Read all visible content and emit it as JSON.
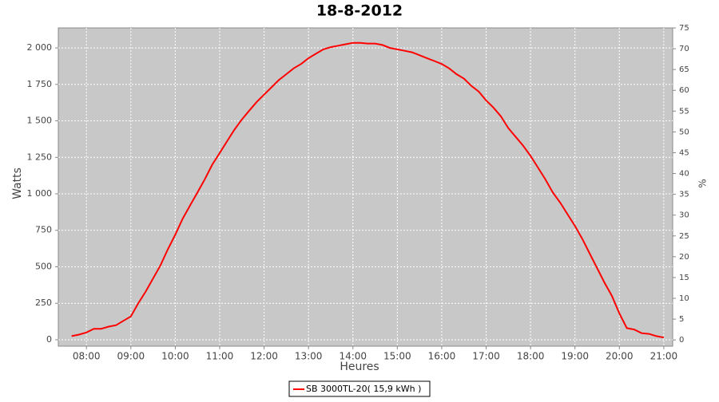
{
  "chart_data": {
    "type": "line",
    "title": "18-8-2012",
    "xlabel": "Heures",
    "ylabel": "Watts",
    "y2label": "%",
    "x": [
      "07:40",
      "07:50",
      "08:00",
      "08:10",
      "08:20",
      "08:30",
      "08:40",
      "08:50",
      "09:00",
      "09:10",
      "09:20",
      "09:30",
      "09:40",
      "09:50",
      "10:00",
      "10:10",
      "10:20",
      "10:30",
      "10:40",
      "10:50",
      "11:00",
      "11:10",
      "11:20",
      "11:30",
      "11:40",
      "11:50",
      "12:00",
      "12:10",
      "12:20",
      "12:30",
      "12:40",
      "12:50",
      "13:00",
      "13:10",
      "13:20",
      "13:30",
      "13:40",
      "13:50",
      "14:00",
      "14:10",
      "14:20",
      "14:30",
      "14:40",
      "14:50",
      "15:00",
      "15:10",
      "15:20",
      "15:30",
      "15:40",
      "15:50",
      "16:00",
      "16:10",
      "16:20",
      "16:30",
      "16:40",
      "16:50",
      "17:00",
      "17:10",
      "17:20",
      "17:30",
      "17:40",
      "17:50",
      "18:00",
      "18:10",
      "18:20",
      "18:30",
      "18:40",
      "18:50",
      "19:00",
      "19:10",
      "19:20",
      "19:30",
      "19:40",
      "19:50",
      "20:00",
      "20:10",
      "20:20",
      "20:30",
      "20:40",
      "20:50",
      "21:00"
    ],
    "series": [
      {
        "name": "SB 3000TL-20( 15,9 kWh )",
        "color": "#ff0000",
        "values": [
          25,
          35,
          50,
          75,
          75,
          90,
          100,
          130,
          160,
          250,
          330,
          420,
          510,
          620,
          720,
          830,
          920,
          1010,
          1100,
          1200,
          1280,
          1360,
          1440,
          1510,
          1570,
          1630,
          1680,
          1730,
          1780,
          1820,
          1860,
          1890,
          1930,
          1960,
          1990,
          2005,
          2015,
          2025,
          2035,
          2035,
          2030,
          2030,
          2020,
          2000,
          1990,
          1980,
          1970,
          1950,
          1930,
          1910,
          1890,
          1860,
          1820,
          1790,
          1740,
          1700,
          1640,
          1590,
          1530,
          1450,
          1390,
          1330,
          1260,
          1180,
          1100,
          1010,
          940,
          860,
          780,
          690,
          590,
          490,
          390,
          300,
          180,
          80,
          70,
          45,
          40,
          25,
          15
        ]
      }
    ],
    "xlim": [
      "07:22",
      "21:12"
    ],
    "xticks": [
      "08:00",
      "09:00",
      "10:00",
      "11:00",
      "12:00",
      "13:00",
      "14:00",
      "15:00",
      "16:00",
      "17:00",
      "18:00",
      "19:00",
      "20:00",
      "21:00"
    ],
    "ylim": [
      -44,
      2137
    ],
    "yticks": [
      0,
      250,
      500,
      750,
      {
        "value": 1000,
        "label": "1 000"
      },
      {
        "value": 1250,
        "label": "1 250"
      },
      {
        "value": 1500,
        "label": "1 500"
      },
      {
        "value": 1750,
        "label": "1 750"
      },
      {
        "value": 2000,
        "label": "2 000"
      }
    ],
    "y2lim": [
      -1.5,
      75
    ],
    "y2ticks": [
      0,
      5,
      10,
      15,
      20,
      25,
      30,
      35,
      40,
      45,
      50,
      55,
      60,
      65,
      70,
      75
    ],
    "grid": true,
    "plot_background": "#c8c8c8",
    "legend": "bottom"
  }
}
